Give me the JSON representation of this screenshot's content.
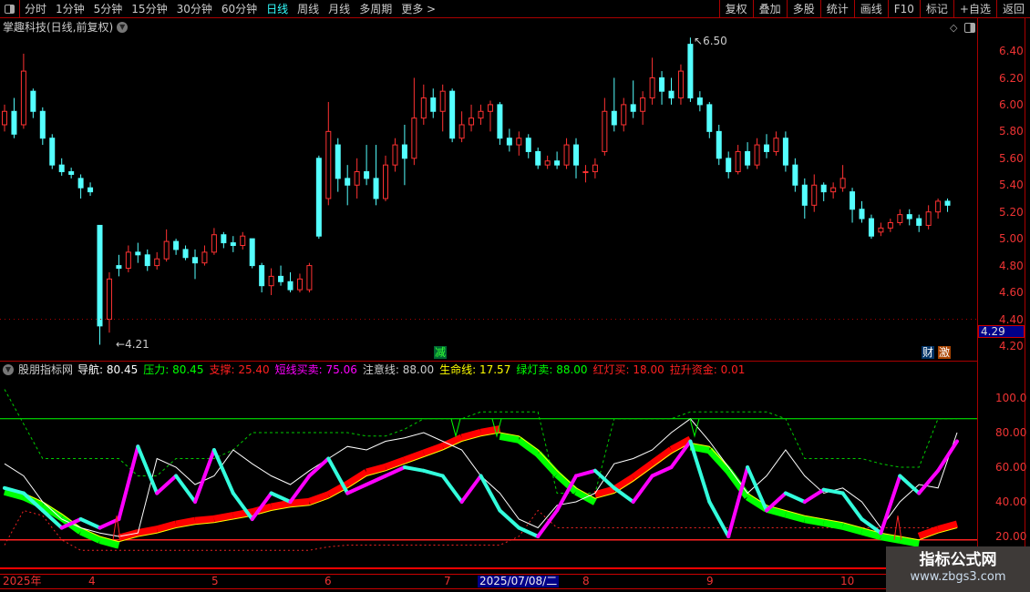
{
  "toolbar": {
    "periods": [
      "分时",
      "1分钟",
      "5分钟",
      "15分钟",
      "30分钟",
      "60分钟",
      "日线",
      "周线",
      "月线",
      "多周期",
      "更多 >"
    ],
    "active": "日线",
    "right_buttons": [
      "复权",
      "叠加",
      "多股",
      "统计",
      "画线",
      "F10",
      "标记",
      "+自选",
      "返回"
    ]
  },
  "info": {
    "title": "掌趣科技(日线,前复权)"
  },
  "price_axis": {
    "labels": [
      "6.40",
      "6.20",
      "6.00",
      "5.80",
      "5.60",
      "5.40",
      "5.20",
      "5.00",
      "4.80",
      "4.60",
      "4.40",
      "4.20"
    ],
    "current_price": "4.29"
  },
  "annotations": {
    "high": "6.50",
    "low": "4.21",
    "tag_jian": "减",
    "tag_cai": "财",
    "tag_ji": "激"
  },
  "colors": {
    "up": "#ff3232",
    "down": "#54ffff",
    "grid": "#aa0000"
  },
  "candles": [
    [
      5.85,
      5.95,
      6.0,
      5.8
    ],
    [
      5.95,
      5.78,
      6.05,
      5.75
    ],
    [
      5.85,
      6.25,
      6.38,
      5.82
    ],
    [
      6.1,
      5.95,
      6.12,
      5.9
    ],
    [
      5.95,
      5.75,
      5.98,
      5.7
    ],
    [
      5.75,
      5.55,
      5.78,
      5.52
    ],
    [
      5.55,
      5.5,
      5.6,
      5.47
    ],
    [
      5.5,
      5.48,
      5.53,
      5.45
    ],
    [
      5.45,
      5.38,
      5.48,
      5.3
    ],
    [
      5.38,
      5.35,
      5.42,
      5.32
    ],
    [
      5.1,
      4.35,
      5.1,
      4.21
    ],
    [
      4.4,
      4.7,
      4.75,
      4.3
    ],
    [
      4.8,
      4.78,
      4.88,
      4.72
    ],
    [
      4.78,
      4.9,
      4.95,
      4.75
    ],
    [
      4.9,
      4.88,
      4.97,
      4.82
    ],
    [
      4.88,
      4.8,
      4.92,
      4.76
    ],
    [
      4.8,
      4.85,
      4.9,
      4.77
    ],
    [
      4.85,
      4.98,
      5.07,
      4.83
    ],
    [
      4.98,
      4.92,
      5.0,
      4.88
    ],
    [
      4.92,
      4.86,
      4.95,
      4.84
    ],
    [
      4.86,
      4.82,
      4.92,
      4.7
    ],
    [
      4.82,
      4.9,
      4.95,
      4.8
    ],
    [
      4.9,
      5.03,
      5.08,
      4.88
    ],
    [
      5.03,
      4.97,
      5.05,
      4.93
    ],
    [
      4.97,
      4.95,
      5.02,
      4.9
    ],
    [
      4.95,
      5.02,
      5.05,
      4.92
    ],
    [
      5.0,
      4.8,
      5.0,
      4.78
    ],
    [
      4.8,
      4.65,
      4.82,
      4.6
    ],
    [
      4.65,
      4.72,
      4.78,
      4.58
    ],
    [
      4.72,
      4.68,
      4.8,
      4.65
    ],
    [
      4.68,
      4.62,
      4.75,
      4.6
    ],
    [
      4.62,
      4.7,
      4.74,
      4.6
    ],
    [
      4.62,
      4.8,
      4.82,
      4.6
    ],
    [
      5.6,
      5.02,
      5.62,
      5.0
    ],
    [
      5.3,
      5.8,
      6.02,
      5.25
    ],
    [
      5.7,
      5.45,
      5.75,
      5.35
    ],
    [
      5.45,
      5.4,
      5.55,
      5.25
    ],
    [
      5.4,
      5.5,
      5.6,
      5.3
    ],
    [
      5.5,
      5.45,
      5.7,
      5.4
    ],
    [
      5.45,
      5.3,
      5.7,
      5.25
    ],
    [
      5.3,
      5.55,
      5.62,
      5.28
    ],
    [
      5.55,
      5.7,
      5.75,
      5.5
    ],
    [
      5.7,
      5.6,
      5.85,
      5.4
    ],
    [
      5.6,
      5.9,
      6.2,
      5.55
    ],
    [
      5.9,
      6.05,
      6.15,
      5.85
    ],
    [
      6.05,
      5.95,
      6.12,
      5.9
    ],
    [
      5.95,
      6.1,
      6.15,
      5.8
    ],
    [
      6.1,
      5.75,
      6.12,
      5.72
    ],
    [
      5.75,
      5.85,
      5.95,
      5.72
    ],
    [
      5.85,
      5.9,
      6.0,
      5.8
    ],
    [
      5.9,
      5.95,
      6.0,
      5.85
    ],
    [
      5.95,
      6.0,
      6.03,
      5.8
    ],
    [
      6.0,
      5.75,
      6.02,
      5.7
    ],
    [
      5.75,
      5.7,
      5.82,
      5.65
    ],
    [
      5.7,
      5.75,
      5.8,
      5.62
    ],
    [
      5.75,
      5.65,
      5.78,
      5.6
    ],
    [
      5.65,
      5.55,
      5.68,
      5.52
    ],
    [
      5.55,
      5.58,
      5.62,
      5.52
    ],
    [
      5.58,
      5.55,
      5.65,
      5.52
    ],
    [
      5.55,
      5.7,
      5.75,
      5.52
    ],
    [
      5.7,
      5.55,
      5.75,
      5.45
    ],
    [
      5.5,
      5.5,
      5.55,
      5.42
    ],
    [
      5.5,
      5.55,
      5.6,
      5.45
    ],
    [
      5.65,
      5.95,
      6.05,
      5.62
    ],
    [
      5.95,
      5.85,
      6.2,
      5.8
    ],
    [
      5.85,
      6.0,
      6.05,
      5.8
    ],
    [
      6.0,
      5.95,
      6.18,
      5.9
    ],
    [
      5.95,
      6.05,
      6.1,
      5.85
    ],
    [
      6.05,
      6.2,
      6.35,
      6.0
    ],
    [
      6.2,
      6.1,
      6.25,
      6.0
    ],
    [
      6.1,
      6.05,
      6.2,
      6.0
    ],
    [
      6.05,
      6.25,
      6.3,
      6.0
    ],
    [
      6.45,
      6.05,
      6.5,
      6.02
    ],
    [
      6.05,
      6.0,
      6.1,
      5.95
    ],
    [
      6.0,
      5.8,
      6.02,
      5.75
    ],
    [
      5.8,
      5.6,
      5.85,
      5.55
    ],
    [
      5.6,
      5.5,
      5.65,
      5.45
    ],
    [
      5.5,
      5.65,
      5.7,
      5.48
    ],
    [
      5.65,
      5.55,
      5.72,
      5.52
    ],
    [
      5.55,
      5.7,
      5.75,
      5.52
    ],
    [
      5.7,
      5.65,
      5.78,
      5.6
    ],
    [
      5.65,
      5.75,
      5.8,
      5.62
    ],
    [
      5.75,
      5.55,
      5.8,
      5.5
    ],
    [
      5.55,
      5.4,
      5.6,
      5.35
    ],
    [
      5.4,
      5.25,
      5.45,
      5.15
    ],
    [
      5.25,
      5.4,
      5.48,
      5.2
    ],
    [
      5.4,
      5.35,
      5.42,
      5.28
    ],
    [
      5.35,
      5.38,
      5.42,
      5.3
    ],
    [
      5.38,
      5.45,
      5.55,
      5.35
    ],
    [
      5.35,
      5.22,
      5.38,
      5.12
    ],
    [
      5.22,
      5.15,
      5.28,
      5.12
    ],
    [
      5.15,
      5.02,
      5.18,
      5.0
    ],
    [
      5.05,
      5.08,
      5.12,
      5.02
    ],
    [
      5.08,
      5.12,
      5.15,
      5.05
    ],
    [
      5.12,
      5.18,
      5.22,
      5.1
    ],
    [
      5.18,
      5.15,
      5.22,
      5.1
    ],
    [
      5.15,
      5.1,
      5.18,
      5.05
    ],
    [
      5.1,
      5.2,
      5.25,
      5.07
    ],
    [
      5.2,
      5.28,
      5.3,
      5.15
    ],
    [
      5.28,
      5.25,
      5.3,
      5.2
    ]
  ],
  "indicator": {
    "name": "股朋指标网",
    "legend": [
      {
        "label": "导航: ",
        "value": "80.45",
        "color": "#ffffff"
      },
      {
        "label": "压力: ",
        "value": "80.45",
        "color": "#00ff00"
      },
      {
        "label": "支撑: ",
        "value": "25.40",
        "color": "#ff2020"
      },
      {
        "label": "短线买卖: ",
        "value": "75.06",
        "color": "#ff00ff"
      },
      {
        "label": "注意线: ",
        "value": "88.00",
        "color": "#cccccc"
      },
      {
        "label": "生命线: ",
        "value": "17.57",
        "color": "#ffff00"
      },
      {
        "label": "绿灯卖: ",
        "value": "88.00",
        "color": "#00ff00"
      },
      {
        "label": "红灯买: ",
        "value": "18.00",
        "color": "#ff2020"
      },
      {
        "label": "拉升资金: ",
        "value": "0.01",
        "color": "#ff2020"
      }
    ],
    "axis_labels": [
      "100.0",
      "80.00",
      "60.00",
      "40.00",
      "20.00"
    ],
    "attention_line": 88,
    "support_line": 18,
    "oscillator": [
      48,
      45,
      35,
      25,
      30,
      25,
      30,
      72,
      45,
      55,
      40,
      70,
      45,
      30,
      45,
      40,
      55,
      65,
      45,
      50,
      55,
      60,
      58,
      55,
      40,
      55,
      35,
      25,
      20,
      35,
      55,
      58,
      48,
      40,
      55,
      60,
      75,
      40,
      20,
      60,
      35,
      45,
      40,
      47,
      45,
      30,
      22,
      55,
      45,
      58,
      75
    ],
    "navigator": [
      62,
      55,
      40,
      30,
      25,
      22,
      20,
      22,
      65,
      60,
      50,
      55,
      70,
      62,
      55,
      50,
      58,
      65,
      72,
      70,
      75,
      77,
      80,
      75,
      70,
      55,
      45,
      30,
      25,
      38,
      40,
      45,
      62,
      65,
      70,
      80,
      88,
      75,
      60,
      45,
      55,
      70,
      55,
      45,
      48,
      40,
      25,
      40,
      50,
      48,
      80
    ],
    "lifeline": [
      48,
      45,
      40,
      33,
      25,
      20,
      17,
      20,
      22,
      25,
      27,
      28,
      30,
      32,
      35,
      37,
      38,
      42,
      48,
      55,
      58,
      62,
      66,
      70,
      75,
      78,
      80,
      78,
      70,
      58,
      48,
      42,
      45,
      52,
      60,
      68,
      74,
      72,
      60,
      45,
      38,
      35,
      32,
      30,
      28,
      25,
      22,
      20,
      18,
      22,
      25
    ],
    "pressure": [
      105,
      85,
      65,
      65,
      65,
      65,
      65,
      55,
      55,
      65,
      65,
      65,
      70,
      80,
      80,
      80,
      80,
      80,
      80,
      78,
      78,
      82,
      88,
      88,
      88,
      92,
      92,
      92,
      92,
      45,
      45,
      45,
      88,
      88,
      88,
      88,
      92,
      92,
      92,
      92,
      92,
      88,
      65,
      65,
      65,
      65,
      62,
      60,
      60,
      88,
      88
    ],
    "support": [
      15,
      35,
      32,
      18,
      12,
      12,
      12,
      12,
      12,
      12,
      12,
      12,
      12,
      12,
      12,
      12,
      12,
      14,
      15,
      15,
      15,
      15,
      15,
      15,
      15,
      15,
      15,
      20,
      35,
      25,
      25,
      25,
      25,
      25,
      25,
      25,
      25,
      25,
      25,
      25,
      25,
      25,
      25,
      25,
      25,
      25,
      25,
      25,
      25,
      25,
      25
    ]
  },
  "time_axis": {
    "labels": [
      "2025年",
      "4",
      "5",
      "6",
      "7",
      "8",
      "9",
      "10"
    ],
    "cursor_date": "2025/07/08/二"
  },
  "watermark": {
    "line1": "指标公式网",
    "line2": "www.zbgs3.com"
  }
}
